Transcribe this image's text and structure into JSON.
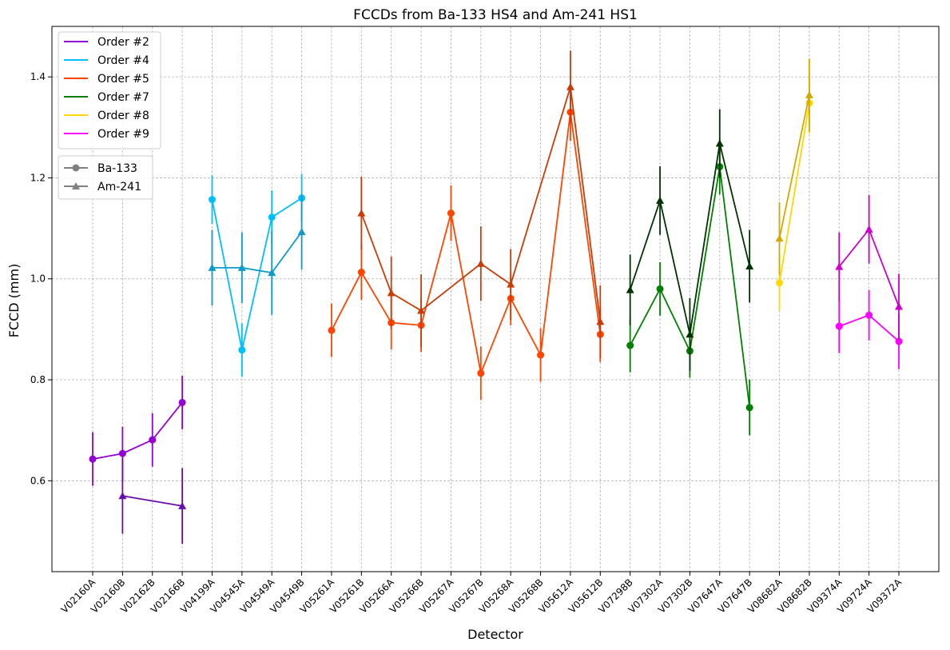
{
  "chart_data": {
    "type": "line",
    "title": "FCCDs from Ba-133 HS4 and Am-241 HS1",
    "xlabel": "Detector",
    "ylabel": "FCCD (mm)",
    "ylim": [
      0.42,
      1.5
    ],
    "yticks": [
      "0.6",
      "0.8",
      "1.0",
      "1.2",
      "1.4"
    ],
    "grid": true,
    "legend_placement": "top-left",
    "categories": [
      "V02160A",
      "V02160B",
      "V02162B",
      "V02166B",
      "V04199A",
      "V04545A",
      "V04549A",
      "V04549B",
      "V05261A",
      "V05261B",
      "V05266A",
      "V05266B",
      "V05267A",
      "V05267B",
      "V05268A",
      "V05268B",
      "V05612A",
      "V05612B",
      "V07298B",
      "V07302A",
      "V07302B",
      "V07647A",
      "V07647B",
      "V08682A",
      "V08682B",
      "V09374A",
      "V09724A",
      "V09372A"
    ],
    "legend_orders": [
      {
        "label": "Order #2",
        "color": "#9400d3"
      },
      {
        "label": "Order #4",
        "color": "#00bfff"
      },
      {
        "label": "Order #5",
        "color": "#ff4500"
      },
      {
        "label": "Order #7",
        "color": "#008000"
      },
      {
        "label": "Order #8",
        "color": "#ffd700"
      },
      {
        "label": "Order #9",
        "color": "#ff00ff"
      }
    ],
    "legend_sources": [
      {
        "label": "Ba-133",
        "marker": "circle",
        "color": "#808080"
      },
      {
        "label": "Am-241",
        "marker": "triangle",
        "color": "#808080"
      }
    ],
    "series": [
      {
        "order": "Order #2",
        "source": "Ba-133",
        "marker": "circle",
        "color": "#9400d3",
        "points": [
          {
            "x": "V02160A",
            "y": 0.643,
            "err": 0.053
          },
          {
            "x": "V02160B",
            "y": 0.654,
            "err": 0.053
          },
          {
            "x": "V02162B",
            "y": 0.681,
            "err": 0.053
          },
          {
            "x": "V02166B",
            "y": 0.755,
            "err": 0.053
          }
        ]
      },
      {
        "order": "Order #2",
        "source": "Am-241",
        "marker": "triangle",
        "color": "#6a0dad",
        "points": [
          {
            "x": "V02160B",
            "y": 0.57,
            "err": 0.075
          },
          {
            "x": "V02166B",
            "y": 0.55,
            "err": 0.075
          }
        ]
      },
      {
        "order": "Order #4",
        "source": "Ba-133",
        "marker": "circle",
        "color": "#00bfff",
        "points": [
          {
            "x": "V04199A",
            "y": 1.157,
            "err": 0.048
          },
          {
            "x": "V04545A",
            "y": 0.859,
            "err": 0.053
          },
          {
            "x": "V04549A",
            "y": 1.122,
            "err": 0.053
          },
          {
            "x": "V04549B",
            "y": 1.16,
            "err": 0.048
          }
        ]
      },
      {
        "order": "Order #4",
        "source": "Am-241",
        "marker": "triangle",
        "color": "#0e9acb",
        "points": [
          {
            "x": "V04199A",
            "y": 1.022,
            "err": 0.075
          },
          {
            "x": "V04545A",
            "y": 1.022,
            "err": 0.07
          },
          {
            "x": "V04549A",
            "y": 1.012,
            "err": 0.083
          },
          {
            "x": "V04549B",
            "y": 1.093,
            "err": 0.075
          }
        ]
      },
      {
        "order": "Order #5",
        "source": "Ba-133",
        "marker": "circle",
        "color": "#ff4500",
        "points": [
          {
            "x": "V05261A",
            "y": 0.898,
            "err": 0.053
          },
          {
            "x": "V05261B",
            "y": 1.013,
            "err": 0.055
          },
          {
            "x": "V05266A",
            "y": 0.913,
            "err": 0.053
          },
          {
            "x": "V05266B",
            "y": 0.908,
            "err": 0.053
          },
          {
            "x": "V05267A",
            "y": 1.13,
            "err": 0.055
          },
          {
            "x": "V05267B",
            "y": 0.813,
            "err": 0.053
          },
          {
            "x": "V05268A",
            "y": 0.961,
            "err": 0.053
          },
          {
            "x": "V05268B",
            "y": 0.849,
            "err": 0.053
          },
          {
            "x": "V05612A",
            "y": 1.33,
            "err": 0.057
          },
          {
            "x": "V05612B",
            "y": 0.89,
            "err": 0.055
          }
        ]
      },
      {
        "order": "Order #5",
        "source": "Am-241",
        "marker": "triangle",
        "color": "#c83c08",
        "points": [
          {
            "x": "V05261B",
            "y": 1.13,
            "err": 0.072
          },
          {
            "x": "V05266A",
            "y": 0.972,
            "err": 0.072
          },
          {
            "x": "V05266B",
            "y": 0.937,
            "err": 0.072
          },
          {
            "x": "V05267B",
            "y": 1.03,
            "err": 0.074
          },
          {
            "x": "V05268A",
            "y": 0.989,
            "err": 0.07
          },
          {
            "x": "V05612A",
            "y": 1.38,
            "err": 0.072
          },
          {
            "x": "V05612B",
            "y": 0.915,
            "err": 0.072
          }
        ]
      },
      {
        "order": "Order #7",
        "source": "Ba-133",
        "marker": "circle",
        "color": "#008000",
        "points": [
          {
            "x": "V07298B",
            "y": 0.868,
            "err": 0.053
          },
          {
            "x": "V07302A",
            "y": 0.98,
            "err": 0.053
          },
          {
            "x": "V07302B",
            "y": 0.857,
            "err": 0.053
          },
          {
            "x": "V07647A",
            "y": 1.222,
            "err": 0.055
          },
          {
            "x": "V07647B",
            "y": 0.745,
            "err": 0.055
          }
        ]
      },
      {
        "order": "Order #7",
        "source": "Am-241",
        "marker": "triangle",
        "color": "#013201",
        "points": [
          {
            "x": "V07298B",
            "y": 0.978,
            "err": 0.07
          },
          {
            "x": "V07302A",
            "y": 1.155,
            "err": 0.068
          },
          {
            "x": "V07302B",
            "y": 0.89,
            "err": 0.072
          },
          {
            "x": "V07647A",
            "y": 1.268,
            "err": 0.068
          },
          {
            "x": "V07647B",
            "y": 1.025,
            "err": 0.072
          }
        ]
      },
      {
        "order": "Order #8",
        "source": "Ba-133",
        "marker": "circle",
        "color": "#ffd700",
        "points": [
          {
            "x": "V08682A",
            "y": 0.992,
            "err": 0.055
          },
          {
            "x": "V08682B",
            "y": 1.348,
            "err": 0.06
          }
        ]
      },
      {
        "order": "Order #8",
        "source": "Am-241",
        "marker": "triangle",
        "color": "#d4aa00",
        "points": [
          {
            "x": "V08682A",
            "y": 1.08,
            "err": 0.072
          },
          {
            "x": "V08682B",
            "y": 1.364,
            "err": 0.072
          }
        ]
      },
      {
        "order": "Order #9",
        "source": "Ba-133",
        "marker": "circle",
        "color": "#ff00ff",
        "points": [
          {
            "x": "V09374A",
            "y": 0.906,
            "err": 0.053
          },
          {
            "x": "V09724A",
            "y": 0.928,
            "err": 0.05
          },
          {
            "x": "V09372A",
            "y": 0.876,
            "err": 0.055
          }
        ]
      },
      {
        "order": "Order #9",
        "source": "Am-241",
        "marker": "triangle",
        "color": "#cc00cc",
        "points": [
          {
            "x": "V09374A",
            "y": 1.024,
            "err": 0.068
          },
          {
            "x": "V09724A",
            "y": 1.098,
            "err": 0.068
          },
          {
            "x": "V09372A",
            "y": 0.945,
            "err": 0.065
          }
        ]
      }
    ]
  }
}
